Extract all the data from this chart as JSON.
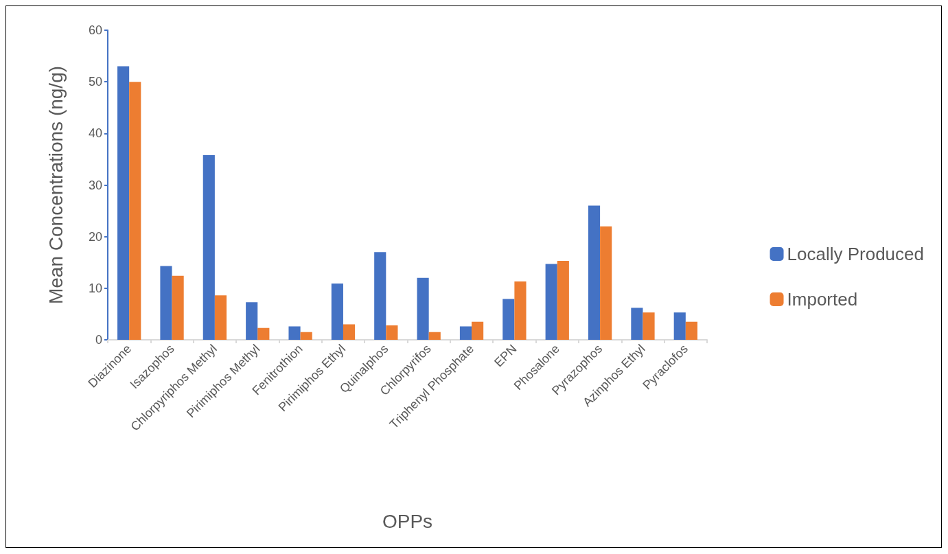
{
  "chart_data": {
    "type": "bar",
    "xlabel": "OPPs",
    "ylabel": "Mean Concentrations (ng/g)",
    "categories": [
      "Diazinone",
      "Isazophos",
      "Chlorpyriphos Methyl",
      "Pirimiphos Methyl",
      "Fenitrothion",
      "Pirimiphos Ethyl",
      "Quinalphos",
      "Chlorpyrifos",
      "Triphenyl Phosphate",
      "EPN",
      "Phosalone",
      "Pyrazophos",
      "Azinphos Ethyl",
      "Pyraclofos"
    ],
    "series": [
      {
        "name": "Locally Produced",
        "color": "#4472c4",
        "values": [
          53,
          14.3,
          35.8,
          7.3,
          2.6,
          10.9,
          17,
          12,
          2.6,
          7.9,
          14.7,
          26,
          6.2,
          5.3
        ]
      },
      {
        "name": "Imported",
        "color": "#ed7d31",
        "values": [
          50,
          12.4,
          8.6,
          2.3,
          1.5,
          3,
          2.8,
          1.5,
          3.5,
          11.3,
          15.3,
          22,
          5.3,
          3.5
        ]
      }
    ],
    "ylim": [
      0,
      60
    ],
    "yticks": [
      0,
      10,
      20,
      30,
      40,
      50,
      60
    ],
    "grid": false,
    "legend": "right"
  }
}
